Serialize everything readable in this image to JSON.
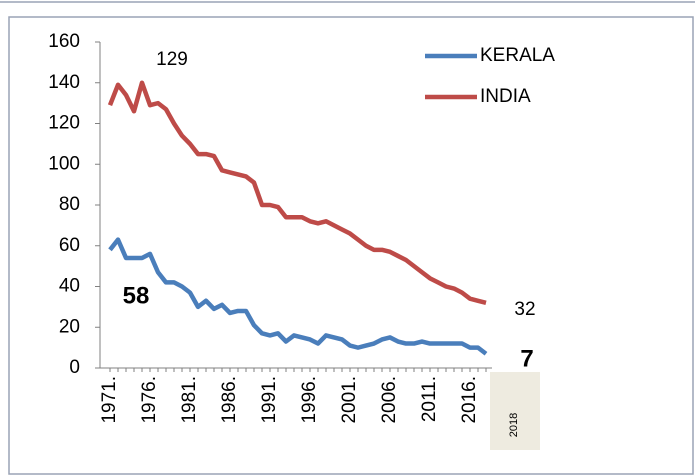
{
  "chart_data": {
    "type": "line",
    "categories": [
      "1971.",
      null,
      null,
      null,
      null,
      "1976.",
      null,
      null,
      null,
      null,
      "1981.",
      null,
      null,
      null,
      null,
      "1986.",
      null,
      null,
      null,
      null,
      "1991.",
      null,
      null,
      null,
      null,
      "1996.",
      null,
      null,
      null,
      null,
      "2001.",
      null,
      null,
      null,
      null,
      "2006.",
      null,
      null,
      null,
      null,
      "2011.",
      null,
      null,
      null,
      null,
      "2016.",
      null,
      "2018"
    ],
    "series": [
      {
        "name": "KERALA",
        "color": "#4a7ebb",
        "values": [
          58,
          63,
          54,
          54,
          54,
          56,
          47,
          42,
          42,
          40,
          37,
          30,
          33,
          29,
          31,
          27,
          28,
          28,
          21,
          17,
          16,
          17,
          13,
          16,
          15,
          14,
          12,
          16,
          15,
          14,
          11,
          10,
          11,
          12,
          14,
          15,
          13,
          12,
          12,
          13,
          12,
          12,
          12,
          12,
          12,
          10,
          10,
          7
        ]
      },
      {
        "name": "INDIA",
        "color": "#be4b48",
        "values": [
          129,
          139,
          134,
          126,
          140,
          129,
          130,
          127,
          120,
          114,
          110,
          105,
          105,
          104,
          97,
          96,
          95,
          94,
          91,
          80,
          80,
          79,
          74,
          74,
          74,
          72,
          71,
          72,
          70,
          68,
          66,
          63,
          60,
          58,
          58,
          57,
          55,
          53,
          50,
          47,
          44,
          42,
          40,
          39,
          37,
          34,
          33,
          32
        ]
      }
    ],
    "ylim": [
      0,
      160
    ],
    "yticks": [
      0,
      20,
      40,
      60,
      80,
      100,
      120,
      140,
      160
    ],
    "legend": "top-right",
    "highlight_category_color": "#eeebe0",
    "annotations": [
      {
        "text": "129",
        "bold": false
      },
      {
        "text": "58",
        "bold": true
      },
      {
        "text": "32",
        "bold": false
      },
      {
        "text": "7",
        "bold": true
      }
    ]
  }
}
